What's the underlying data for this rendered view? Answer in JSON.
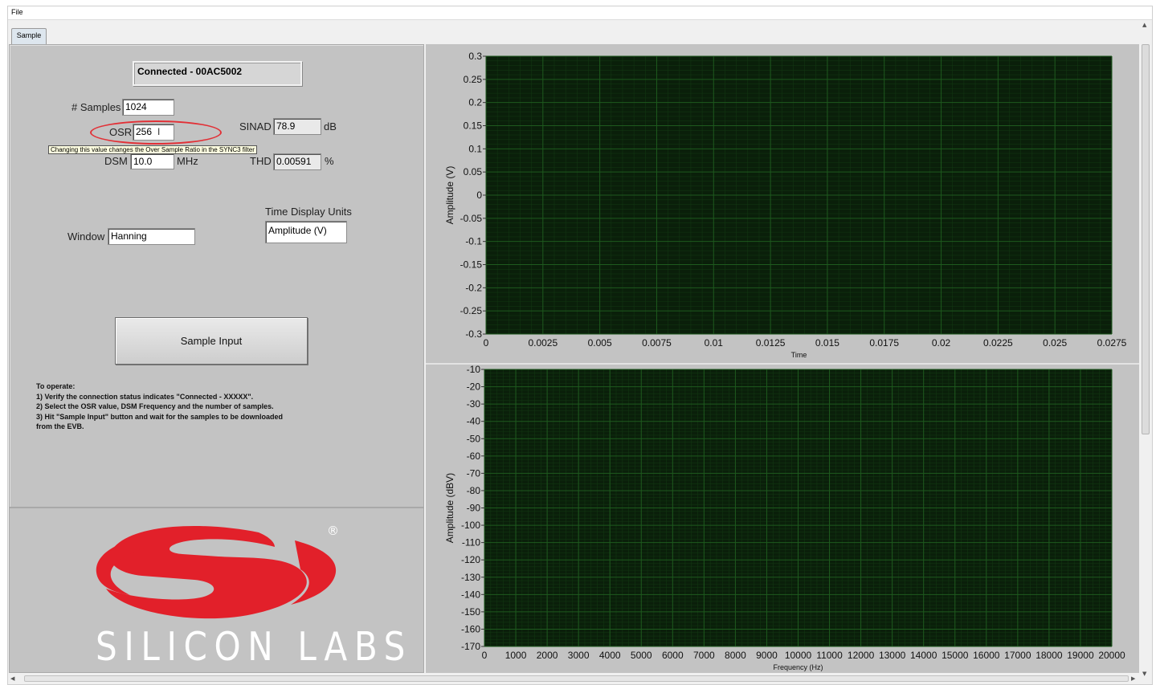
{
  "menu": {
    "file": "File"
  },
  "tab": {
    "label": "Sample"
  },
  "connection": {
    "status": "Connected - 00AC5002"
  },
  "settings": {
    "samples_label": "# Samples",
    "samples_value": "1024",
    "osr_label": "OSR",
    "osr_value": "256",
    "dsm_label": "DSM",
    "dsm_value": "10.0",
    "dsm_unit": "MHz",
    "window_label": "Window",
    "window_value": "Hanning",
    "time_units_label": "Time Display Units",
    "time_units_value": "Amplitude (V)"
  },
  "results": {
    "sinad_label": "SINAD",
    "sinad_value": "78.9",
    "sinad_unit": "dB",
    "thd_label": "THD",
    "thd_value": "0.00591",
    "thd_unit": "%"
  },
  "tooltip": {
    "text": "Changing this value changes the Over Sample Ratio in the SYNC3 filter"
  },
  "button": {
    "sample_input": "Sample Input"
  },
  "instructions": [
    "To operate:",
    "1) Verify the connection status indicates \"Connected - XXXXX\".",
    "2) Select the OSR value, DSM Frequency  and the number of samples.",
    "3) Hit \"Sample Input\" button and wait for the samples to be downloaded",
    "from the EVB."
  ],
  "logo": {
    "text": "SILICON LABS",
    "registered": "®"
  },
  "colors": {
    "plot_bg": "#0a1f0a",
    "grid_major": "#1e5a1e",
    "grid_minor": "#123612",
    "panel": "#c3c3c3",
    "logo_red": "#e2202a"
  },
  "chart_data": [
    {
      "type": "line",
      "title": "",
      "xlabel": "Time",
      "ylabel": "Amplitude (V)",
      "xlim": [
        0,
        0.0275
      ],
      "ylim": [
        -0.3,
        0.3
      ],
      "x_ticks": [
        "0",
        "0.0025",
        "0.005",
        "0.0075",
        "0.01",
        "0.0125",
        "0.015",
        "0.0175",
        "0.02",
        "0.0225",
        "0.025",
        "0.0275"
      ],
      "y_ticks": [
        "0.3",
        "0.25",
        "0.2",
        "0.15",
        "0.1",
        "0.05",
        "0",
        "-0.05",
        "-0.1",
        "-0.15",
        "-0.2",
        "-0.25",
        "-0.3"
      ],
      "grid": true,
      "series": []
    },
    {
      "type": "line",
      "title": "",
      "xlabel": "Frequency (Hz)",
      "ylabel": "Amplitude (dBV)",
      "xlim": [
        0,
        20000
      ],
      "ylim": [
        -170,
        -10
      ],
      "x_ticks": [
        "0",
        "1000",
        "2000",
        "3000",
        "4000",
        "5000",
        "6000",
        "7000",
        "8000",
        "9000",
        "10000",
        "11000",
        "12000",
        "13000",
        "14000",
        "15000",
        "16000",
        "17000",
        "18000",
        "19000",
        "20000"
      ],
      "y_ticks": [
        "-10",
        "-20",
        "-30",
        "-40",
        "-50",
        "-60",
        "-70",
        "-80",
        "-90",
        "-100",
        "-110",
        "-120",
        "-130",
        "-140",
        "-150",
        "-160",
        "-170"
      ],
      "grid": true,
      "series": []
    }
  ]
}
